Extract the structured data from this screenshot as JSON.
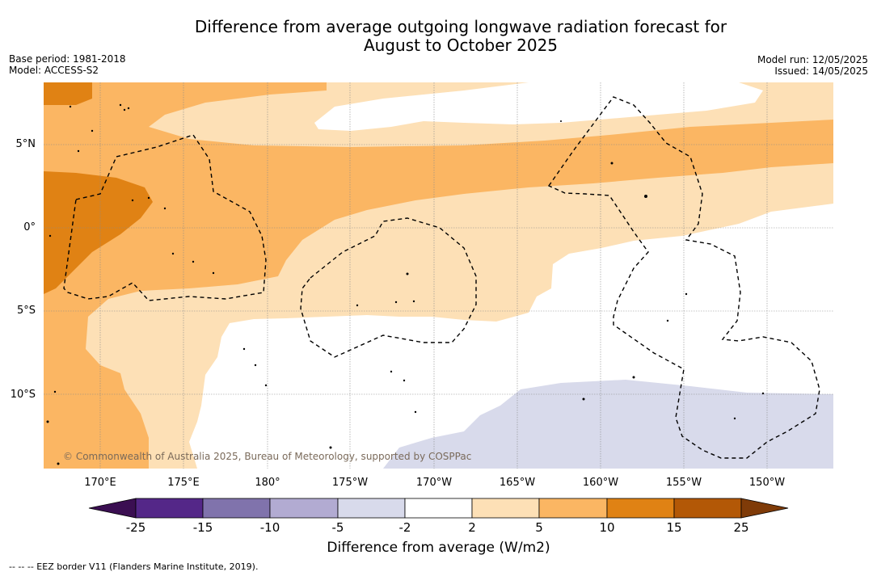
{
  "title_line1": "Difference from average outgoing longwave radiation forecast for",
  "title_line2": "August to October 2025",
  "base_period": "Base period: 1981-2018",
  "model": "Model: ACCESS-S2",
  "model_run": "Model run: 12/05/2025",
  "issued": "Issued: 14/05/2025",
  "lat_labels": [
    "5°N",
    "0°",
    "5°S",
    "10°S"
  ],
  "lon_labels": [
    "170°E",
    "175°E",
    "180°",
    "175°W",
    "170°W",
    "165°W",
    "160°W",
    "155°W",
    "150°W"
  ],
  "copyright": "© Commonwealth of Australia 2025, Bureau of Meteorology, supported by COSPPac",
  "colorbar": {
    "ticks": [
      "-25",
      "-15",
      "-10",
      "-5",
      "-2",
      "2",
      "5",
      "10",
      "15",
      "25"
    ],
    "label": "Difference from average (W/m2)",
    "colors": {
      "lt_-25": "#3b0f52",
      "-25_-15": "#542788",
      "-15_-10": "#8073ac",
      "-10_-5": "#b2abd2",
      "-5_-2": "#d8daeb",
      "-2_2": "#ffffff",
      "2_5": "#fde0b6",
      "5_10": "#fbb663",
      "10_15": "#e08214",
      "15_25": "#b35806",
      "gt_25": "#7f3b08"
    }
  },
  "footnote": "--  --  -- EEZ border V11 (Flanders Marine Institute, 2019)."
}
